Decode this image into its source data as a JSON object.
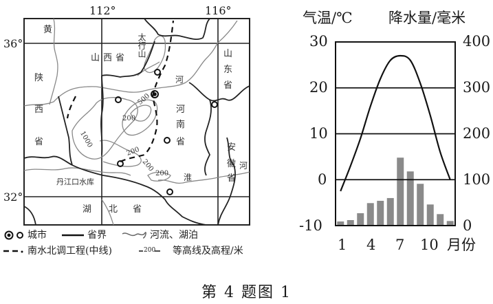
{
  "map": {
    "longitude_labels": [
      "112°",
      "116°"
    ],
    "latitude_labels": [
      "36°",
      "32°"
    ],
    "places": {
      "huang": "黄",
      "shanxi": "山西省",
      "taihang": "太行山",
      "shaanxi": [
        "陕",
        "西",
        "省"
      ],
      "henan": [
        "河",
        "南",
        "省"
      ],
      "he_river": "河",
      "shandong": [
        "山",
        "东",
        "省"
      ],
      "anhui": [
        "安",
        "徽",
        "省"
      ],
      "anhui_river": "河",
      "huai": "淮",
      "danjiangkou": "丹江口水库",
      "hubei": [
        "湖",
        "北",
        "省"
      ]
    },
    "contour_labels": [
      "500",
      "200",
      "1000",
      "200",
      "200",
      "200"
    ]
  },
  "legend": {
    "city": "城市",
    "province_border": "省界",
    "river_lake": "河流、湖泊",
    "south_north_water": "南水北调工程(中线)",
    "contour_sample": "200",
    "contour": "等高线及高程/米"
  },
  "chart_data": {
    "type": "bar+line",
    "title": "",
    "left_axis_label": "气温/℃",
    "right_axis_label": "降水量/毫米",
    "xlabel": "月份",
    "x": [
      1,
      2,
      3,
      4,
      5,
      6,
      7,
      8,
      9,
      10,
      11,
      12
    ],
    "x_tick_labels": [
      "1",
      "4",
      "7",
      "10"
    ],
    "x_unit": "月份",
    "left_ticks": [
      "30",
      "20",
      "10",
      "0",
      "-10"
    ],
    "right_ticks": [
      "400",
      "300",
      "200",
      "100",
      "0"
    ],
    "left_ylim": [
      -10,
      30
    ],
    "right_ylim": [
      0,
      400
    ],
    "grid": "horizontal",
    "series": [
      {
        "name": "气温",
        "type": "line",
        "axis": "left",
        "unit": "℃",
        "values": [
          -2.5,
          3,
          9,
          16,
          22,
          26,
          27,
          26,
          21,
          14,
          6,
          0
        ]
      },
      {
        "name": "降水量",
        "type": "bar",
        "axis": "right",
        "unit": "毫米",
        "values": [
          9,
          12,
          27,
          49,
          54,
          60,
          148,
          118,
          91,
          46,
          25,
          10
        ]
      }
    ]
  },
  "caption": "第 4 题图 1"
}
